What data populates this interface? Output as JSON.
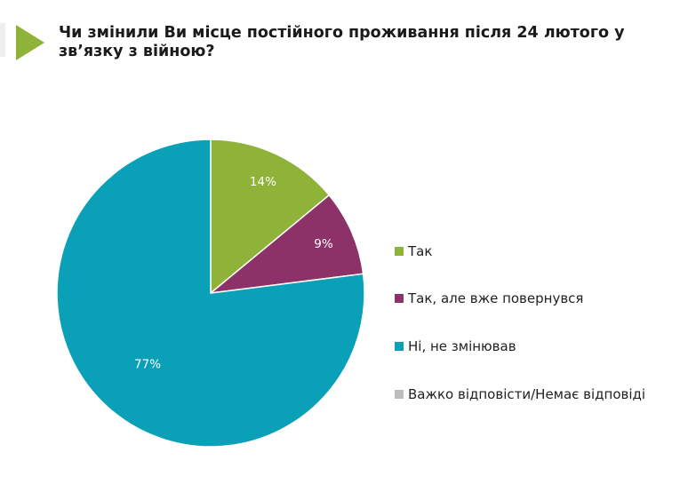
{
  "chart_data": {
    "type": "pie",
    "title": "Чи змінили Ви місце постійного проживання після 24 лютого у зв’язку з війною?",
    "categories": [
      "Так",
      "Так, але вже повернувся",
      "Ні, не змінював",
      "Важко відповісти/Немає відповіді"
    ],
    "values": [
      14,
      9,
      77,
      0
    ],
    "data_labels": [
      "14%",
      "9%",
      "77%",
      ""
    ],
    "colors": [
      "#8fb339",
      "#8c3269",
      "#0aa1b8",
      "#bdbdbd"
    ],
    "legend": "right",
    "start_angle_deg": 0,
    "direction": "clockwise"
  },
  "decor": {
    "accent_color": "#8fb339",
    "icon": "play-triangle-icon"
  }
}
